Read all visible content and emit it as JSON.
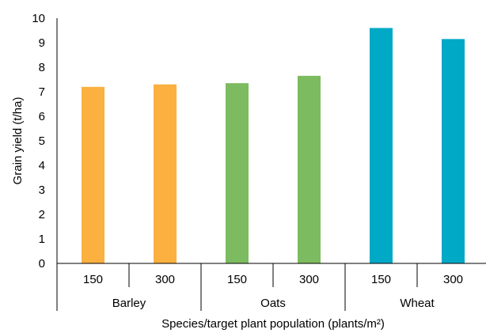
{
  "chart_data": {
    "type": "bar",
    "ylabel": "Grain yield (t/ha)",
    "xlabel": "Species/target plant population (plants/m²)",
    "ylim": [
      0,
      10
    ],
    "yticks": [
      "0",
      "1",
      "2",
      "3",
      "4",
      "5",
      "6",
      "7",
      "8",
      "9",
      "10"
    ],
    "grid": false,
    "legend": "none",
    "groups": [
      {
        "name": "Barley",
        "color": "#FBB040",
        "categories": [
          "150",
          "300"
        ],
        "values": [
          7.2,
          7.3
        ]
      },
      {
        "name": "Oats",
        "color": "#7CBB5F",
        "categories": [
          "150",
          "300"
        ],
        "values": [
          7.35,
          7.65
        ]
      },
      {
        "name": "Wheat",
        "color": "#00A9C6",
        "categories": [
          "150",
          "300"
        ],
        "values": [
          9.6,
          9.15
        ]
      }
    ]
  }
}
